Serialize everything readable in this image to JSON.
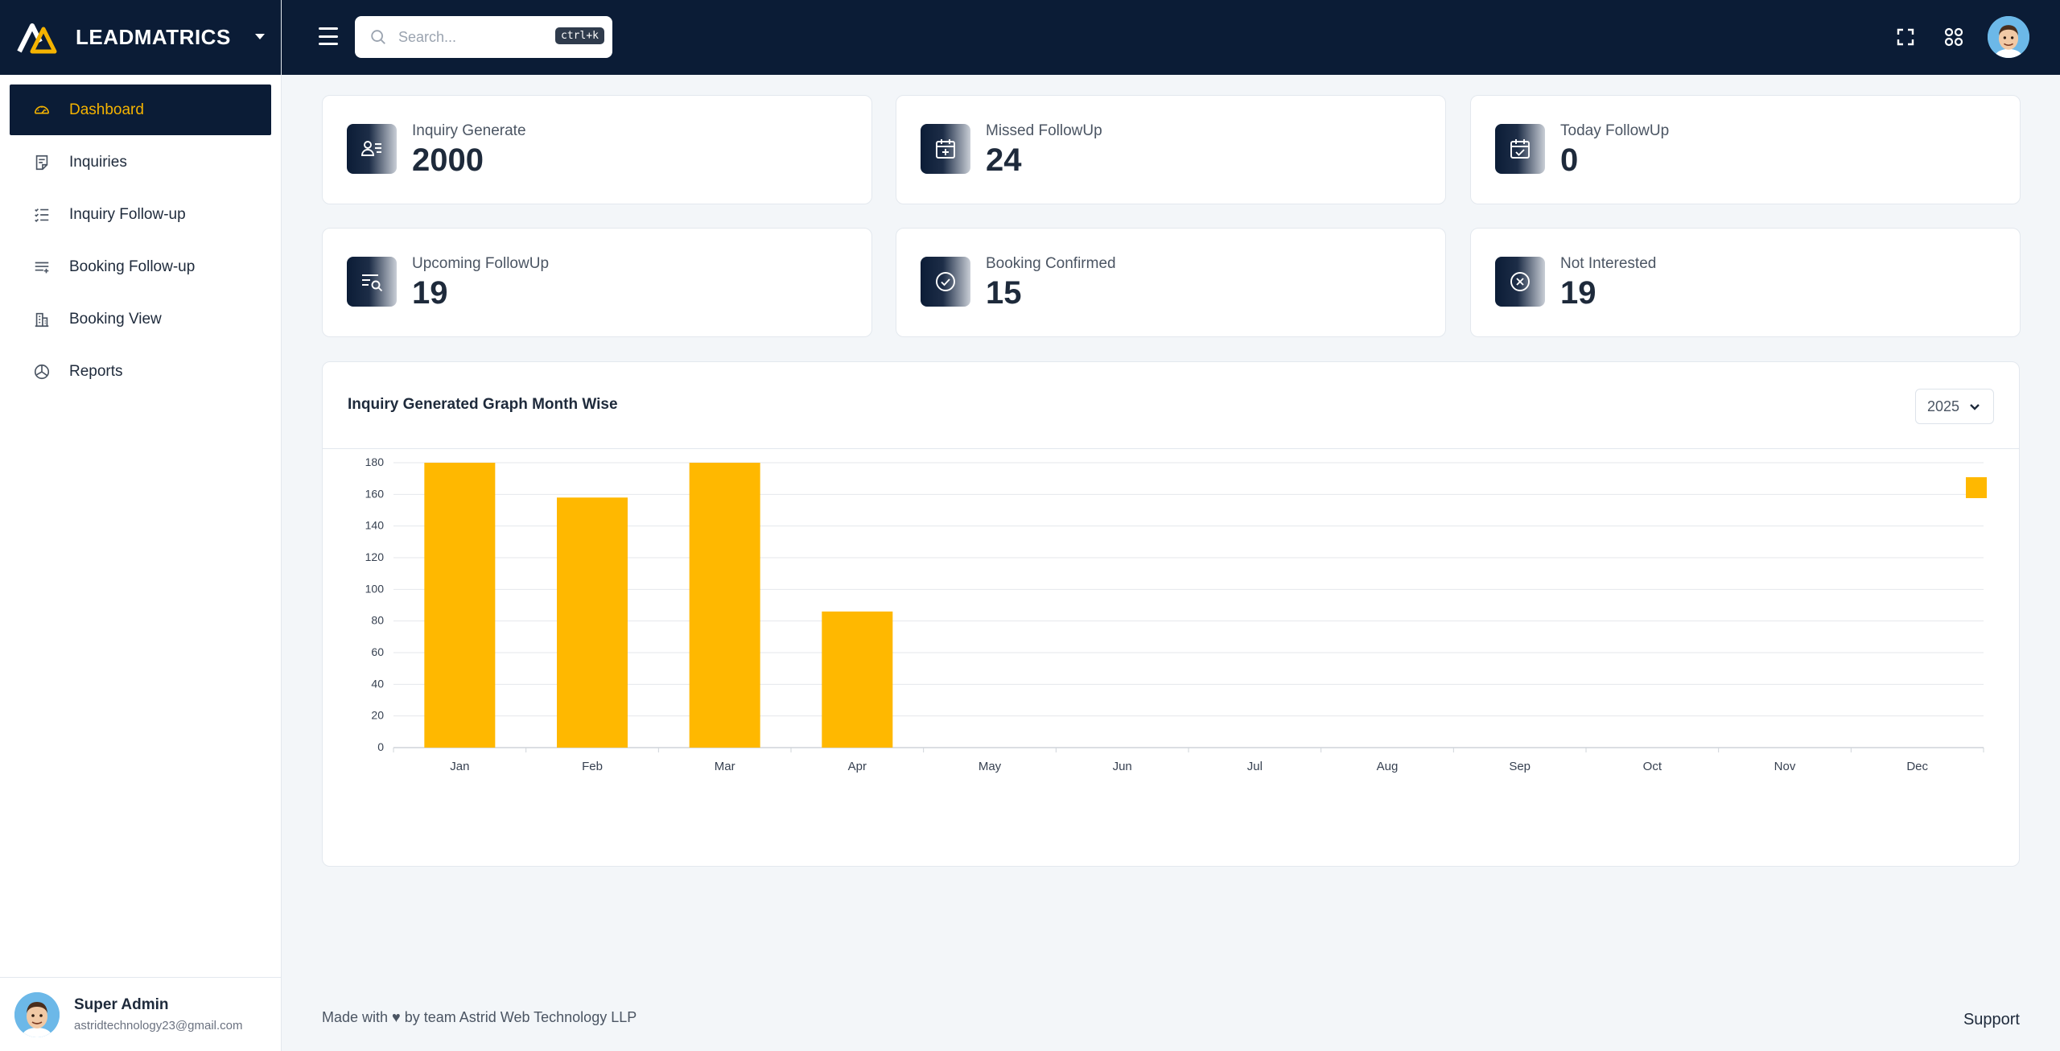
{
  "brand": {
    "name": "LEADMATRICS"
  },
  "sidebar": {
    "items": [
      {
        "label": "Dashboard",
        "icon": "gauge-icon",
        "active": true
      },
      {
        "label": "Inquiries",
        "icon": "note-icon",
        "active": false
      },
      {
        "label": "Inquiry Follow-up",
        "icon": "checklist-icon",
        "active": false
      },
      {
        "label": "Booking Follow-up",
        "icon": "list-add-icon",
        "active": false
      },
      {
        "label": "Booking View",
        "icon": "building-icon",
        "active": false
      },
      {
        "label": "Reports",
        "icon": "pie-chart-icon",
        "active": false
      }
    ]
  },
  "user": {
    "name": "Super Admin",
    "email": "astridtechnology23@gmail.com"
  },
  "header": {
    "search_placeholder": "Search...",
    "search_shortcut": "ctrl+k"
  },
  "stats": [
    {
      "label": "Inquiry Generate",
      "value": "2000",
      "icon": "user-list-icon"
    },
    {
      "label": "Missed FollowUp",
      "value": "24",
      "icon": "calendar-plus-icon"
    },
    {
      "label": "Today FollowUp",
      "value": "0",
      "icon": "calendar-check-icon"
    },
    {
      "label": "Upcoming FollowUp",
      "value": "19",
      "icon": "list-search-icon"
    },
    {
      "label": "Booking Confirmed",
      "value": "15",
      "icon": "check-circle-icon"
    },
    {
      "label": "Not Interested",
      "value": "19",
      "icon": "x-circle-icon"
    }
  ],
  "chart_panel": {
    "title": "Inquiry Generated Graph Month Wise",
    "year": "2025"
  },
  "chart_data": {
    "type": "bar",
    "title": "",
    "xlabel": "",
    "ylabel": "",
    "categories": [
      "Jan",
      "Feb",
      "Mar",
      "Apr",
      "May",
      "Jun",
      "Jul",
      "Aug",
      "Sep",
      "Oct",
      "Nov",
      "Dec"
    ],
    "series": [
      {
        "values": [
          180,
          158,
          180,
          86,
          0,
          0,
          0,
          0,
          0,
          0,
          0,
          0
        ],
        "color": "#ffb800"
      }
    ],
    "ylim": [
      0,
      180
    ],
    "yticks": [
      0,
      20,
      40,
      60,
      80,
      100,
      120,
      140,
      160,
      180
    ],
    "grid": true,
    "legend": "top-right"
  },
  "footer": {
    "credit": "Made with ♥ by team Astrid Web Technology LLP",
    "support": "Support"
  },
  "colors": {
    "navy": "#0b1c36",
    "accent": "#f5b300",
    "bar": "#ffb800"
  }
}
